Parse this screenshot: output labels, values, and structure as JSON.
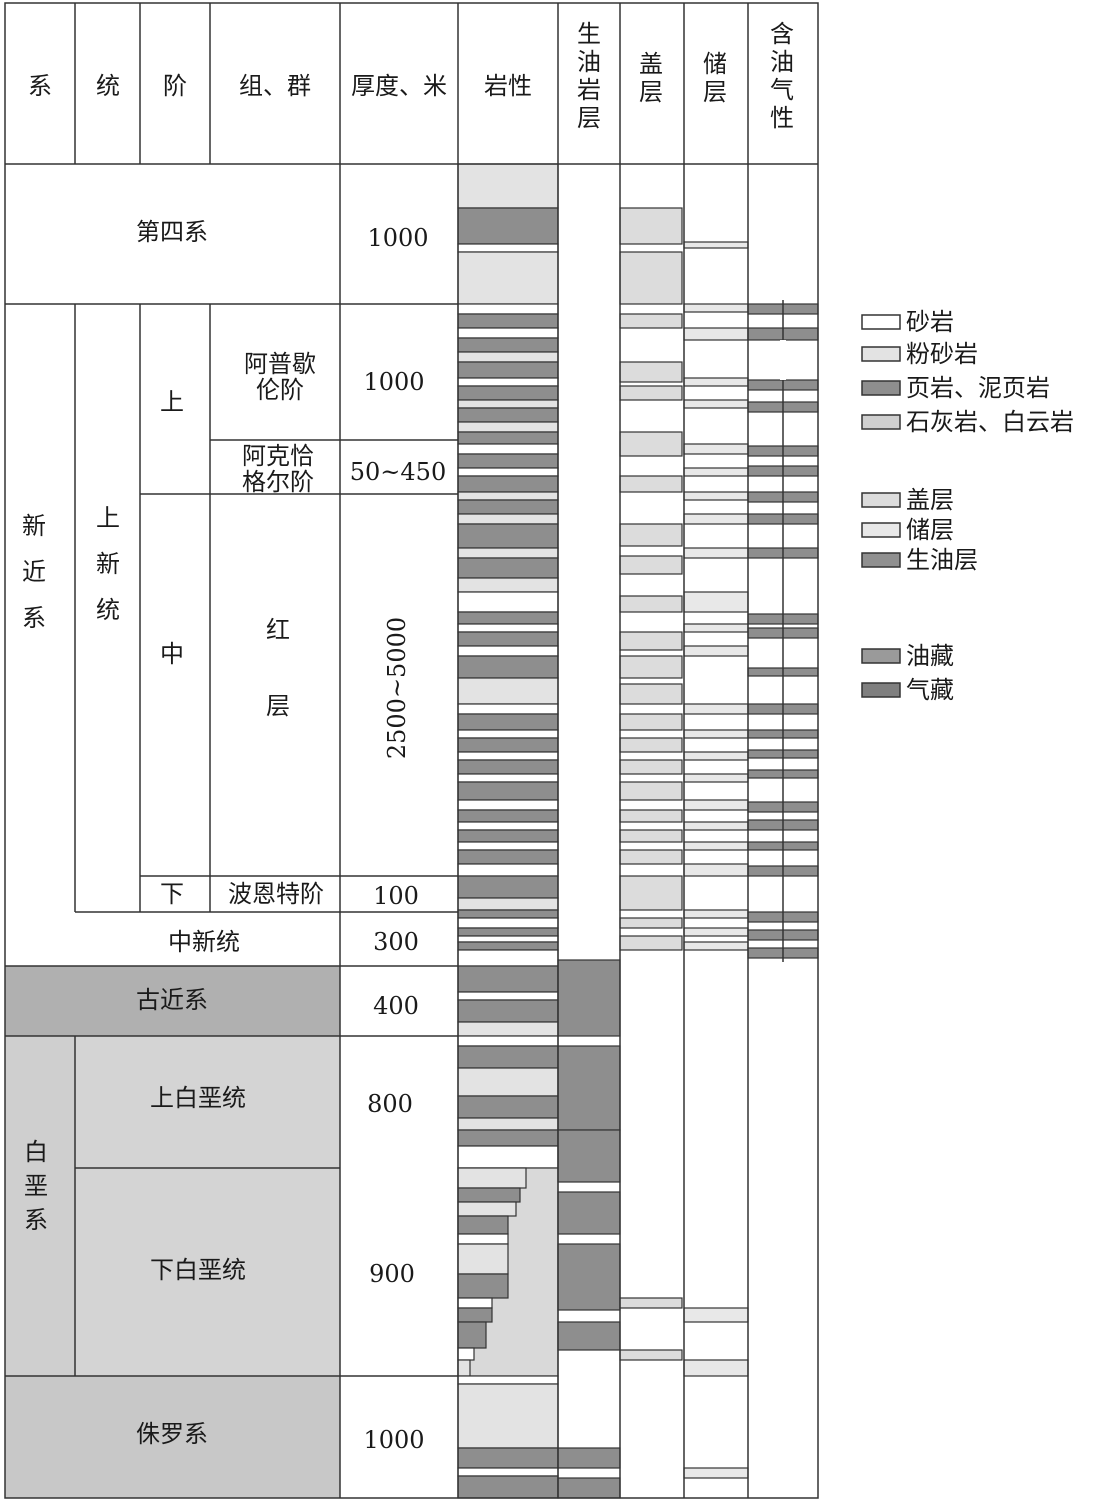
{
  "headers": [
    "系",
    "统",
    "阶",
    "组、群",
    "厚度、米",
    "岩性",
    "生油岩层",
    "盖层",
    "储层",
    "含油气性"
  ],
  "units": [
    {
      "id": "quaternary",
      "name": "第四系",
      "thickness": "1000"
    },
    {
      "id": "akchagylian",
      "system": "新近系",
      "series": "上新统",
      "stage": "上",
      "group": "阿普歇伦阶",
      "thickness": "1000"
    },
    {
      "id": "akchagyl",
      "group": "阿克恰格尔阶",
      "thickness": "50~450"
    },
    {
      "id": "redbeds",
      "stage": "中",
      "group": "红层",
      "thickness": "2500~5000"
    },
    {
      "id": "pontian",
      "stage": "下",
      "group": "波恩特阶",
      "thickness": "100"
    },
    {
      "id": "miocene",
      "name": "中新统",
      "thickness": "300"
    },
    {
      "id": "paleogene",
      "name": "古近系",
      "thickness": "400"
    },
    {
      "id": "upper-cretaceous",
      "system": "白垩系",
      "series": "上白垩统",
      "thickness": "800"
    },
    {
      "id": "lower-cretaceous",
      "series": "下白垩统",
      "thickness": "900"
    },
    {
      "id": "jurassic",
      "name": "侏罗系",
      "thickness": "1000"
    }
  ],
  "legend": {
    "lithology": [
      {
        "label": "砂岩",
        "color": "#ffffff"
      },
      {
        "label": "粉砂岩",
        "color": "#e3e3e3"
      },
      {
        "label": "页岩、泥页岩",
        "color": "#8e8e8e"
      },
      {
        "label": "石灰岩、白云岩",
        "color": "#cfcfcf"
      }
    ],
    "layers": [
      {
        "label": "盖层",
        "color": "#dcdcdc"
      },
      {
        "label": "储层",
        "color": "#e8e8e8"
      },
      {
        "label": "生油层",
        "color": "#909090"
      }
    ],
    "reservoirs": [
      {
        "label": "油藏",
        "color": "#9a9a9a"
      },
      {
        "label": "气藏",
        "color": "#7f7f7f"
      }
    ]
  },
  "colors": {
    "shale": "#8e8e8e",
    "siltstone": "#e3e3e3",
    "limestone": "#d4d4d4",
    "sandstone": "#ffffff",
    "paleogene_fill": "#b0b0b0",
    "cretaceous_fill": "#d4d4d4",
    "jurassic_fill": "#c8c8c8",
    "line": "#333333"
  }
}
